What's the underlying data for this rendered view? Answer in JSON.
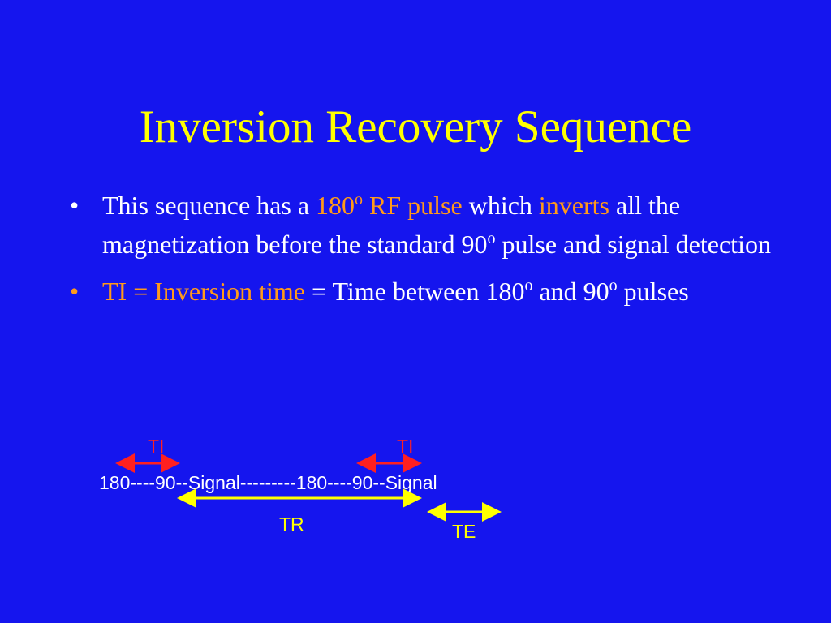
{
  "title": "Inversion Recovery Sequence",
  "bullets": [
    {
      "parts": {
        "a": "This sequence has a ",
        "b": "180",
        "b_sup": "o",
        "c": " RF pulse",
        "d": " which ",
        "e": "inverts",
        "f": " all the magnetization before the standard 90",
        "f_sup": "o",
        "g": " pulse and signal detection"
      }
    },
    {
      "parts": {
        "a": "TI = Inversion time",
        "b": " = Time between 180",
        "b_sup": "o",
        "c": " and 90",
        "c_sup": "o",
        "d": " pulses"
      }
    }
  ],
  "diagram": {
    "sequence": "180----90--Signal---------180----90--Signal",
    "ti_label_1": "TI",
    "ti_label_2": "TI",
    "tr_label": "TR",
    "te_label": "TE"
  },
  "colors": {
    "background": "#1515ee",
    "title": "#ffff00",
    "highlight": "#ff9a1a",
    "ti_arrow": "#ff2020",
    "tr_te_arrow": "#ffff00"
  }
}
